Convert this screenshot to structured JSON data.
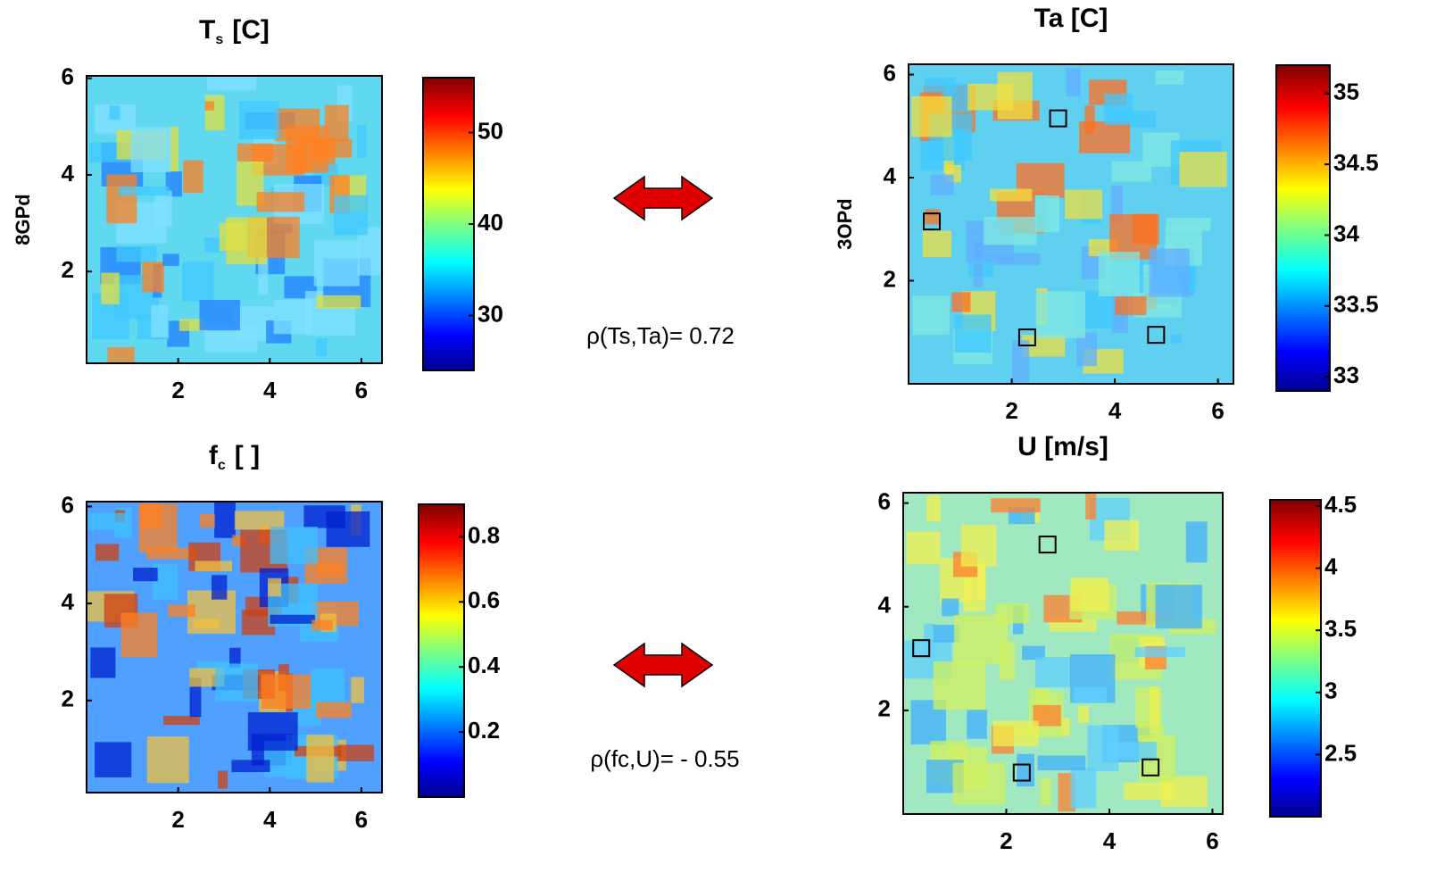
{
  "chart_data": [
    {
      "type": "heatmap",
      "title": {
        "base": "T",
        "sub": "s",
        "unit": "[C]"
      },
      "ylabel": "8GPd",
      "xlim": [
        0,
        6.45
      ],
      "ylim": [
        0.1,
        6.05
      ],
      "xticks": [
        2,
        4,
        6
      ],
      "yticks": [
        2,
        4,
        6
      ],
      "colorbar": {
        "lim": [
          24,
          56
        ],
        "ticks": [
          30,
          40,
          50
        ]
      }
    },
    {
      "type": "heatmap",
      "title": {
        "base": "Ta [C]"
      },
      "ylabel": "3OPd",
      "xlim": [
        0,
        6.3
      ],
      "ylim": [
        0,
        6.2
      ],
      "xticks": [
        2,
        4,
        6
      ],
      "yticks": [
        2,
        4,
        6
      ],
      "colorbar": {
        "lim": [
          32.9,
          35.2
        ],
        "ticks": [
          33,
          33.5,
          34,
          34.5,
          35
        ]
      },
      "markers": {
        "x": [
          2.9,
          0.45,
          2.3,
          4.8
        ],
        "y": [
          5.15,
          3.15,
          0.9,
          0.95
        ]
      }
    },
    {
      "type": "heatmap",
      "title": {
        "base": "f",
        "sub": "c",
        "unit": "[ ]"
      },
      "xlim": [
        0,
        6.45
      ],
      "ylim": [
        0.1,
        6.1
      ],
      "xticks": [
        2,
        4,
        6
      ],
      "yticks": [
        2,
        4,
        6
      ],
      "colorbar": {
        "lim": [
          0,
          0.9
        ],
        "ticks": [
          0.2,
          0.4,
          0.6,
          0.8
        ]
      }
    },
    {
      "type": "heatmap",
      "title": {
        "base": "U [m/s]"
      },
      "xlim": [
        0,
        6.2
      ],
      "ylim": [
        0,
        6.2
      ],
      "xticks": [
        2,
        4,
        6
      ],
      "yticks": [
        2,
        4,
        6
      ],
      "colorbar": {
        "lim": [
          2.0,
          4.55
        ],
        "ticks": [
          2.5,
          3,
          3.5,
          4,
          4.5
        ]
      },
      "markers": {
        "x": [
          2.8,
          0.35,
          2.3,
          4.8
        ],
        "y": [
          5.2,
          3.2,
          0.8,
          0.9
        ]
      }
    }
  ],
  "annotations": [
    "ρ(Ts,Ta)= 0.72",
    "ρ(fc,U)= - 0.55"
  ]
}
